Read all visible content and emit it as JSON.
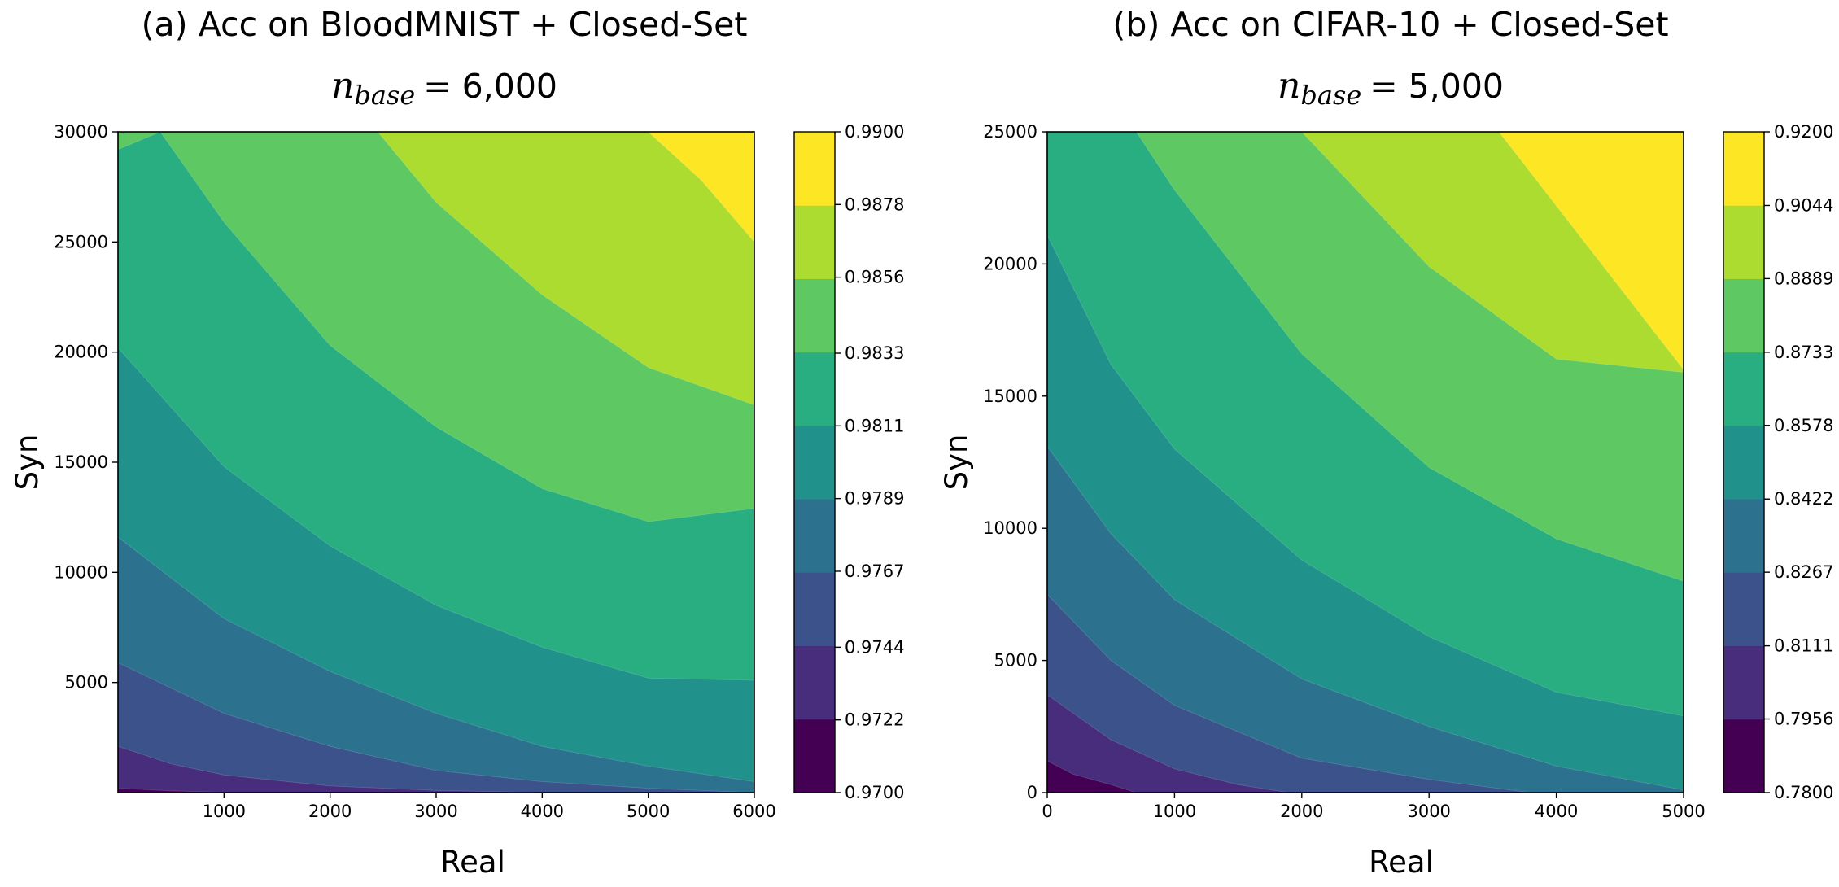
{
  "chart_data": [
    {
      "type": "contour",
      "title": "(a) Acc on BloodMNIST + Closed-Set",
      "subtitle": {
        "variable": "n",
        "subscript": "base",
        "value": "= 6,000"
      },
      "xlabel": "Real",
      "ylabel": "Syn",
      "xlim": [
        0,
        6000
      ],
      "ylim": [
        0,
        30000
      ],
      "x_ticks": [
        "1000",
        "2000",
        "3000",
        "4000",
        "5000",
        "6000"
      ],
      "y_ticks": [
        "5000",
        "10000",
        "15000",
        "20000",
        "25000",
        "30000"
      ],
      "colorbar_range": [
        0.97,
        0.99
      ],
      "colorbar_ticks": [
        "0.9700",
        "0.9722",
        "0.9744",
        "0.9767",
        "0.9789",
        "0.9811",
        "0.9833",
        "0.9856",
        "0.9878",
        "0.9900"
      ],
      "colormap": "viridis",
      "contour_boundaries": [
        {
          "level": 0.9722,
          "points": [
            [
              0,
              200
            ],
            [
              500,
              80
            ],
            [
              1100,
              0
            ]
          ]
        },
        {
          "level": 0.9744,
          "points": [
            [
              0,
              2100
            ],
            [
              500,
              1300
            ],
            [
              1000,
              800
            ],
            [
              2000,
              300
            ],
            [
              3000,
              100
            ],
            [
              4000,
              0
            ]
          ]
        },
        {
          "level": 0.9767,
          "points": [
            [
              0,
              5900
            ],
            [
              1000,
              3600
            ],
            [
              2000,
              2100
            ],
            [
              3000,
              1000
            ],
            [
              4000,
              500
            ],
            [
              5000,
              200
            ],
            [
              6000,
              0
            ]
          ]
        },
        {
          "level": 0.9789,
          "points": [
            [
              0,
              11600
            ],
            [
              1000,
              7900
            ],
            [
              2000,
              5500
            ],
            [
              3000,
              3600
            ],
            [
              4000,
              2100
            ],
            [
              5000,
              1200
            ],
            [
              6000,
              500
            ]
          ]
        },
        {
          "level": 0.9811,
          "points": [
            [
              0,
              20200
            ],
            [
              1000,
              14800
            ],
            [
              2000,
              11200
            ],
            [
              3000,
              8500
            ],
            [
              4000,
              6600
            ],
            [
              5000,
              5200
            ],
            [
              6000,
              5100
            ]
          ]
        },
        {
          "level": 0.9833,
          "points": [
            [
              0,
              29200
            ],
            [
              400,
              30000
            ],
            [
              1000,
              25900
            ],
            [
              2000,
              20300
            ],
            [
              3000,
              16600
            ],
            [
              4000,
              13800
            ],
            [
              5000,
              12300
            ],
            [
              6000,
              12900
            ]
          ]
        },
        {
          "level": 0.9856,
          "points": [
            [
              2450,
              30000
            ],
            [
              3000,
              26800
            ],
            [
              4000,
              22600
            ],
            [
              5000,
              19300
            ],
            [
              6000,
              17600
            ]
          ]
        },
        {
          "level": 0.9878,
          "points": [
            [
              5000,
              30000
            ],
            [
              5500,
              27800
            ],
            [
              6000,
              25000
            ]
          ]
        }
      ]
    },
    {
      "type": "contour",
      "title": "(b) Acc on CIFAR-10 + Closed-Set",
      "subtitle": {
        "variable": "n",
        "subscript": "base",
        "value": "= 5,000"
      },
      "xlabel": "Real",
      "ylabel": "Syn",
      "xlim": [
        0,
        5000
      ],
      "ylim": [
        0,
        25000
      ],
      "x_ticks": [
        "0",
        "1000",
        "2000",
        "3000",
        "4000",
        "5000"
      ],
      "y_ticks": [
        "0",
        "5000",
        "10000",
        "15000",
        "20000",
        "25000"
      ],
      "colorbar_range": [
        0.78,
        0.92
      ],
      "colorbar_ticks": [
        "0.7800",
        "0.7956",
        "0.8111",
        "0.8267",
        "0.8422",
        "0.8578",
        "0.8733",
        "0.8889",
        "0.9044",
        "0.9200"
      ],
      "colormap": "viridis",
      "contour_boundaries": [
        {
          "level": 0.7956,
          "points": [
            [
              0,
              1200
            ],
            [
              200,
              700
            ],
            [
              500,
              300
            ],
            [
              700,
              0
            ]
          ]
        },
        {
          "level": 0.8111,
          "points": [
            [
              0,
              3700
            ],
            [
              500,
              2000
            ],
            [
              1000,
              900
            ],
            [
              1500,
              300
            ],
            [
              1900,
              0
            ]
          ]
        },
        {
          "level": 0.8267,
          "points": [
            [
              0,
              7500
            ],
            [
              500,
              5000
            ],
            [
              1000,
              3300
            ],
            [
              2000,
              1300
            ],
            [
              3000,
              500
            ],
            [
              3800,
              0
            ]
          ]
        },
        {
          "level": 0.8422,
          "points": [
            [
              0,
              13100
            ],
            [
              500,
              9800
            ],
            [
              1000,
              7300
            ],
            [
              2000,
              4300
            ],
            [
              3000,
              2500
            ],
            [
              4000,
              1000
            ],
            [
              5000,
              100
            ]
          ]
        },
        {
          "level": 0.8578,
          "points": [
            [
              0,
              21100
            ],
            [
              500,
              16200
            ],
            [
              1000,
              13000
            ],
            [
              2000,
              8800
            ],
            [
              3000,
              5900
            ],
            [
              4000,
              3800
            ],
            [
              5000,
              2900
            ]
          ]
        },
        {
          "level": 0.8733,
          "points": [
            [
              700,
              25000
            ],
            [
              1000,
              22800
            ],
            [
              2000,
              16600
            ],
            [
              3000,
              12300
            ],
            [
              4000,
              9600
            ],
            [
              5000,
              8000
            ]
          ]
        },
        {
          "level": 0.8889,
          "points": [
            [
              2000,
              25000
            ],
            [
              3000,
              19900
            ],
            [
              4000,
              16400
            ],
            [
              5000,
              15900
            ]
          ]
        },
        {
          "level": 0.9044,
          "points": [
            [
              3550,
              25000
            ],
            [
              4000,
              22200
            ],
            [
              5000,
              16000
            ]
          ]
        }
      ]
    }
  ]
}
